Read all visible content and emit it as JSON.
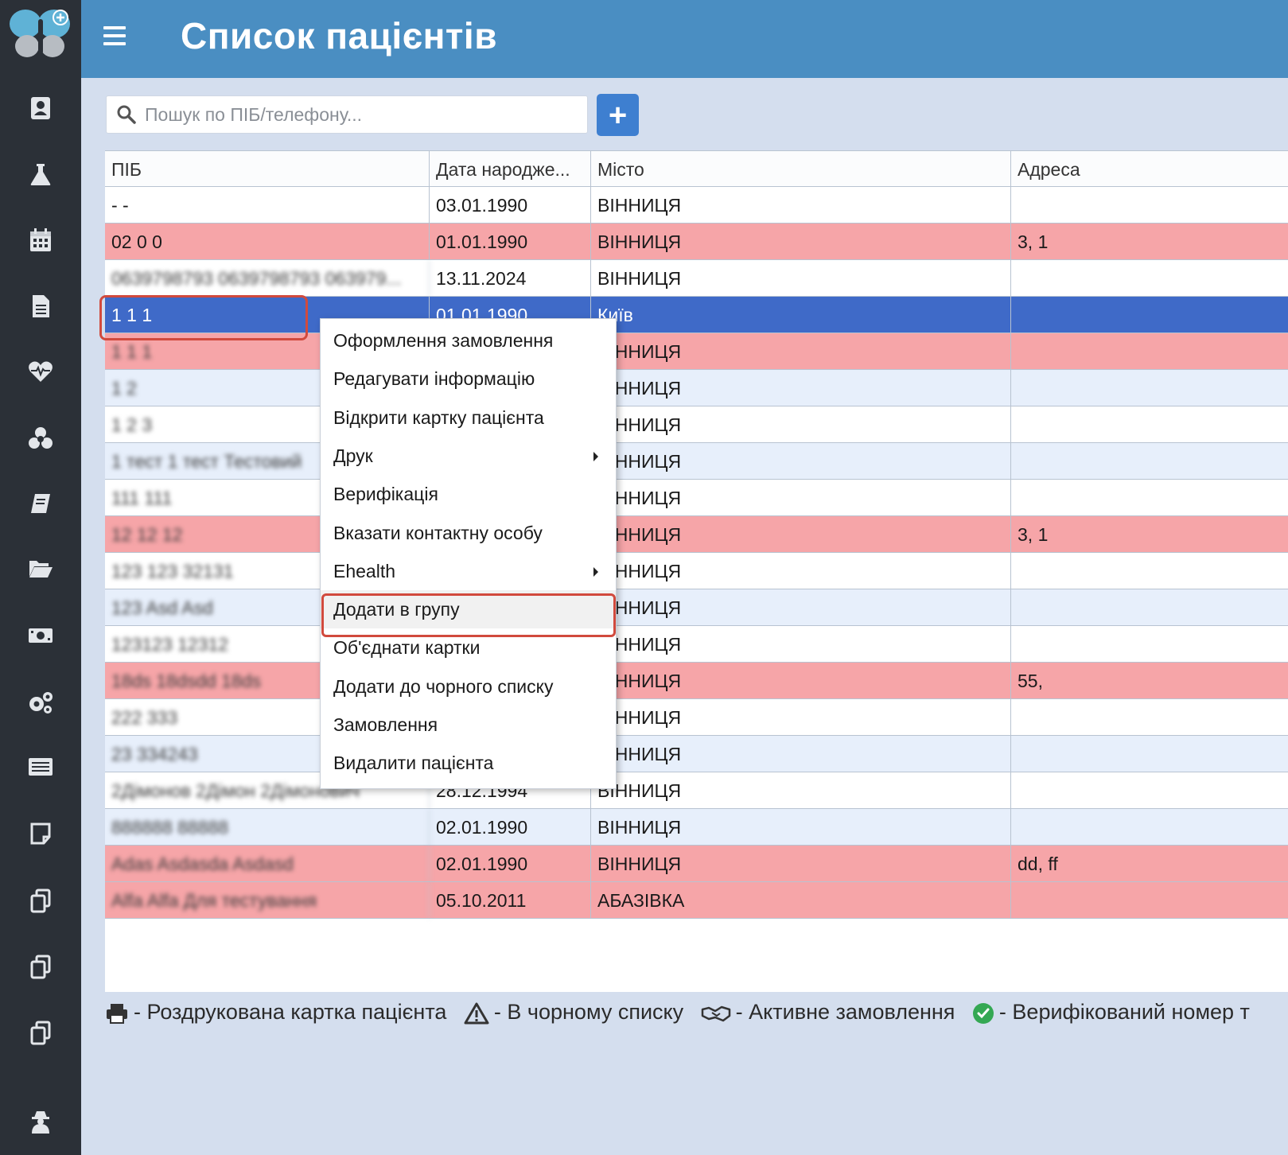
{
  "header": {
    "title": "Список пацієнтів"
  },
  "search": {
    "placeholder": "Пошук по ПІБ/телефону..."
  },
  "toolbar": {
    "add_label": "+"
  },
  "table": {
    "columns": [
      "ПІБ",
      "Дата народже...",
      "Місто",
      "Адреса"
    ],
    "rows": [
      {
        "name": "- -",
        "dob": "03.01.1990",
        "city": "ВІННИЦЯ",
        "address": "",
        "style": "white"
      },
      {
        "name": "02 0 0",
        "dob": "01.01.1990",
        "city": "ВІННИЦЯ",
        "address": "3, 1",
        "style": "red"
      },
      {
        "name": "0639798793 0639798793 063979...",
        "dob": "13.11.2024",
        "city": "ВІННИЦЯ",
        "address": "",
        "style": "white"
      },
      {
        "name": "1 1 1",
        "dob": "01.01.1990",
        "city": "Київ",
        "address": "",
        "style": "sel"
      },
      {
        "name": "1 1 1",
        "dob": "",
        "city": "ВІННИЦЯ",
        "address": "",
        "style": "red"
      },
      {
        "name": "1 2",
        "dob": "",
        "city": "ВІННИЦЯ",
        "address": "",
        "style": "blue"
      },
      {
        "name": "1 2 3",
        "dob": "",
        "city": "ВІННИЦЯ",
        "address": "",
        "style": "white"
      },
      {
        "name": "1 тест 1 тест Тестовий",
        "dob": "",
        "city": "ВІННИЦЯ",
        "address": "",
        "style": "blue"
      },
      {
        "name": "111 111",
        "dob": "",
        "city": "ВІННИЦЯ",
        "address": "",
        "style": "white"
      },
      {
        "name": "12 12 12",
        "dob": "",
        "city": "ВІННИЦЯ",
        "address": "3, 1",
        "style": "red"
      },
      {
        "name": "123 123 32131",
        "dob": "",
        "city": "ВІННИЦЯ",
        "address": "",
        "style": "white"
      },
      {
        "name": "123 Asd Asd",
        "dob": "",
        "city": "ВІННИЦЯ",
        "address": "",
        "style": "blue"
      },
      {
        "name": "123123 12312",
        "dob": "",
        "city": "ВІННИЦЯ",
        "address": "",
        "style": "white"
      },
      {
        "name": "18ds 18dsdd 18ds",
        "dob": "",
        "city": "ВІННИЦЯ",
        "address": "55,",
        "style": "red"
      },
      {
        "name": "222 333",
        "dob": "",
        "city": "ВІННИЦЯ",
        "address": "",
        "style": "white"
      },
      {
        "name": "23 334243",
        "dob": "",
        "city": "ВІННИЦЯ",
        "address": "",
        "style": "blue"
      },
      {
        "name": "2Дімонов 2Дімон 2Дімонович",
        "dob": "28.12.1994",
        "city": "ВІННИЦЯ",
        "address": "",
        "style": "white"
      },
      {
        "name": "888888 88888",
        "dob": "02.01.1990",
        "city": "ВІННИЦЯ",
        "address": "",
        "style": "blue"
      },
      {
        "name": "Adas Asdasda Asdasd",
        "dob": "02.01.1990",
        "city": "ВІННИЦЯ",
        "address": "dd, ff",
        "style": "red"
      },
      {
        "name": "Alfa Alfa Для тестування",
        "dob": "05.10.2011",
        "city": "АБАЗІВКА",
        "address": "",
        "style": "red"
      }
    ]
  },
  "context_menu": {
    "items": [
      {
        "label": "Оформлення замовлення",
        "submenu": false
      },
      {
        "label": "Редагувати інформацію",
        "submenu": false
      },
      {
        "label": "Відкрити картку пацієнта",
        "submenu": false
      },
      {
        "label": "Друк",
        "submenu": true
      },
      {
        "label": "Верифікація",
        "submenu": false
      },
      {
        "label": "Вказати контактну особу",
        "submenu": false
      },
      {
        "label": "Ehealth",
        "submenu": true
      },
      {
        "label": "Додати в групу",
        "submenu": false,
        "highlighted": true
      },
      {
        "label": "Об'єднати картки",
        "submenu": false
      },
      {
        "label": "Додати до чорного списку",
        "submenu": false
      },
      {
        "label": "Замовлення",
        "submenu": false
      },
      {
        "label": "Видалити пацієнта",
        "submenu": false
      }
    ]
  },
  "legend": [
    {
      "icon": "printer-icon",
      "text": "- Роздрукована картка пацієнта"
    },
    {
      "icon": "warning-icon",
      "text": "- В чорному списку"
    },
    {
      "icon": "handshake-icon",
      "text": "- Активне замовлення"
    },
    {
      "icon": "check-circle-icon",
      "text": "- Верифікований номер т"
    }
  ],
  "sidebar": {
    "icons": [
      "contact-card-icon",
      "flask-icon",
      "calendar-icon",
      "document-icon",
      "heartbeat-icon",
      "biohazard-icon",
      "book-icon",
      "folder-open-icon",
      "money-icon",
      "cogs-icon",
      "list-icon",
      "note-icon",
      "copy-icon",
      "copy-icon",
      "copy-icon",
      "user-secret-icon"
    ]
  },
  "colors": {
    "header": "#4a8ec2",
    "sidebar": "#2b3037",
    "selected_row": "#3f6ac8",
    "red_row": "#f6a5a8",
    "outline": "#d14a3d"
  }
}
